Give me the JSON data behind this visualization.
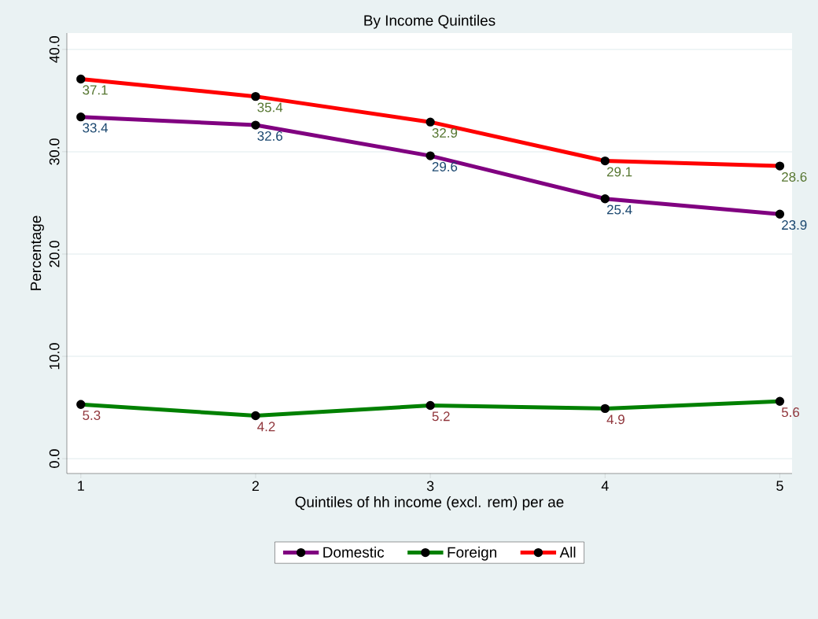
{
  "chart_data": {
    "type": "line",
    "title": "By Income Quintiles",
    "xlabel": "Quintiles of hh income (excl. rem) per ae",
    "ylabel": "Percentage",
    "x": [
      1,
      2,
      3,
      4,
      5
    ],
    "series": [
      {
        "name": "Domestic",
        "color": "#800080",
        "values": [
          33.4,
          32.6,
          29.6,
          25.4,
          23.9
        ]
      },
      {
        "name": "Foreign",
        "color": "#008000",
        "values": [
          5.3,
          4.2,
          5.2,
          4.9,
          5.6
        ]
      },
      {
        "name": "All",
        "color": "#ff0000",
        "values": [
          37.1,
          35.4,
          32.9,
          29.1,
          28.6
        ]
      }
    ],
    "xlim": [
      0.92,
      5.07
    ],
    "ylim": [
      -1.45,
      41.6
    ],
    "xticks": [
      1,
      2,
      3,
      4,
      5
    ],
    "yticks": [
      {
        "value": 0,
        "label": "0.0"
      },
      {
        "value": 10,
        "label": "10.0"
      },
      {
        "value": 20,
        "label": "20.0"
      },
      {
        "value": 30,
        "label": "30.0"
      },
      {
        "value": 40,
        "label": "40.0"
      }
    ],
    "grid": "y",
    "legend": "bottom",
    "marker": "circle",
    "line_style": "solid",
    "data_labels": true
  }
}
